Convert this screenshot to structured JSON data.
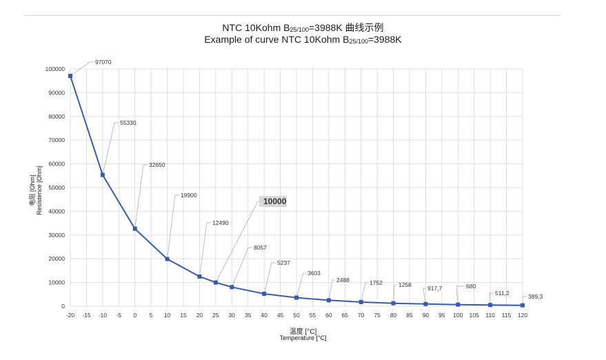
{
  "title": {
    "cn_prefix": "NTC 10Kohm  B",
    "cn_sub": "25/100",
    "cn_suffix": "=3988K 曲线示例",
    "en_prefix": "Example of curve NTC 10Kohm B",
    "en_sub": "25/100",
    "en_suffix": "=3988K"
  },
  "colors": {
    "series": "#3b5ba8",
    "grid": "#d9d9d9",
    "leader": "#a6a6a6",
    "highlight_bg": "#d9d9d9"
  },
  "chart_data": {
    "type": "line",
    "title": "Example of curve NTC 10Kohm B25/100=3988K",
    "xlabel": "温度 [°C]",
    "xlabel_en": "Temperature [°C]",
    "ylabel": "电阻 [Ohm]",
    "ylabel_en": "Resistence [Ohm]",
    "xlim": [
      -20,
      120
    ],
    "ylim": [
      0,
      100000
    ],
    "x_ticks": [
      "-20",
      "-15",
      "-10",
      "-5",
      "0",
      "5",
      "10",
      "15",
      "20",
      "25",
      "30",
      "35",
      "40",
      "45",
      "50",
      "55",
      "60",
      "65",
      "70",
      "75",
      "80",
      "85",
      "90",
      "95",
      "100",
      "105",
      "110",
      "115",
      "120"
    ],
    "y_ticks": [
      "0",
      "10000",
      "20000",
      "30000",
      "40000",
      "50000",
      "60000",
      "70000",
      "80000",
      "90000",
      "100000"
    ],
    "grid": true,
    "legend": "none",
    "series": [
      {
        "x": [
          -20,
          -10,
          0,
          10,
          20,
          25,
          30,
          40,
          50,
          60,
          70,
          80,
          90,
          100,
          110,
          120
        ],
        "y": [
          97070,
          55330,
          32650,
          19900,
          12490,
          10000,
          8057,
          5237,
          3603,
          2488,
          1752,
          1258,
          917.7,
          680,
          511.2,
          389.3
        ]
      }
    ],
    "data_labels": [
      "97070",
      "55330",
      "32650",
      "19900",
      "12490",
      "10000",
      "8057",
      "5237",
      "3603",
      "2488",
      "1752",
      "1258",
      "917,7",
      "680",
      "511,2",
      "389,3"
    ]
  }
}
